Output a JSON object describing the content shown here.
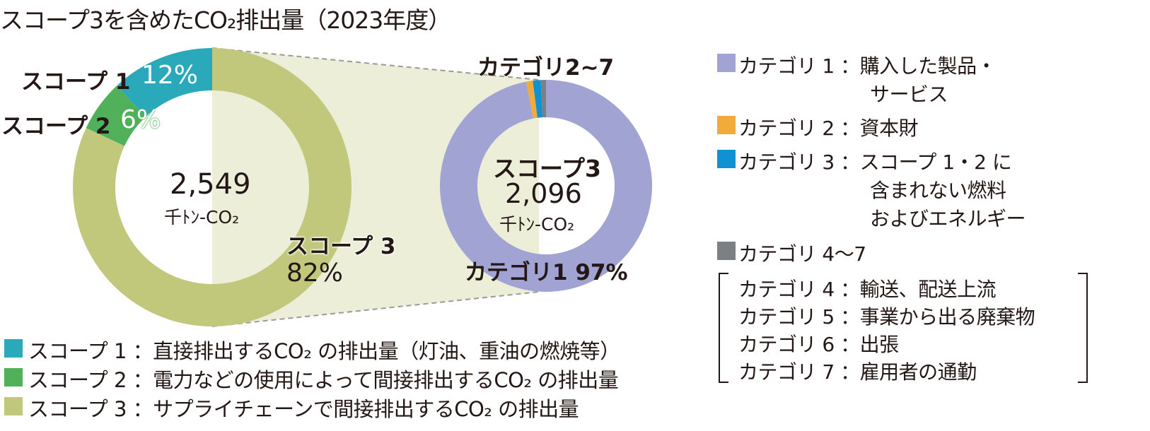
{
  "title": "スコープ3を含めたCO₂排出量（2023年度）",
  "colors": {
    "scope1": "#2aa9bb",
    "scope2": "#51b05a",
    "scope3": "#c1c87c",
    "cat1": "#a1a3d3",
    "cat2": "#f1ab3a",
    "cat3": "#1190d2",
    "cat4_7": "#7d8083",
    "connector": "#eceed8"
  },
  "chart_data": [
    {
      "type": "pie",
      "subtype": "donut",
      "center_value": "2,549",
      "center_unit": "千ﾄﾝ-CO₂",
      "slices": [
        {
          "name": "スコープ 1",
          "value": 12,
          "label": "12%"
        },
        {
          "name": "スコープ 2",
          "value": 6,
          "label": "6%"
        },
        {
          "name": "スコープ 3",
          "value": 82,
          "label": "82%"
        }
      ]
    },
    {
      "type": "pie",
      "subtype": "donut",
      "center_title": "スコープ3",
      "center_value": "2,096",
      "center_unit": "千ﾄﾝ-CO₂",
      "top_label": "カテゴリ2~7",
      "slices": [
        {
          "name": "カテゴリ 1",
          "value": 97,
          "label": "カテゴリ1 97%"
        },
        {
          "name": "カテゴリ 2",
          "value": 1.0
        },
        {
          "name": "カテゴリ 3",
          "value": 1.2
        },
        {
          "name": "カテゴリ 4～7",
          "value": 0.8
        }
      ]
    }
  ],
  "right_legend": {
    "cat1": {
      "line1": "カテゴリ 1 ：購入した製品・",
      "line2": "サービス"
    },
    "cat2": "カテゴリ 2 ：資本財",
    "cat3": {
      "line1": "カテゴリ 3 ：スコープ 1・2 に",
      "line2": "含まれない燃料",
      "line3": "およびエネルギー"
    },
    "cat4_7": "カテゴリ 4～7",
    "sub": [
      "カテゴリ 4 ：輸送、配送上流",
      "カテゴリ 5 ：事業から出る廃棄物",
      "カテゴリ 6 ：出張",
      "カテゴリ 7 ：雇用者の通勤"
    ]
  },
  "bottom_legend": [
    "スコープ 1 ：直接排出するCO₂ の排出量（灯油、重油の燃焼等）",
    "スコープ 2 ：電力などの使用によって間接排出するCO₂ の排出量",
    "スコープ 3 ：サプライチェーンで間接排出するCO₂ の排出量"
  ]
}
